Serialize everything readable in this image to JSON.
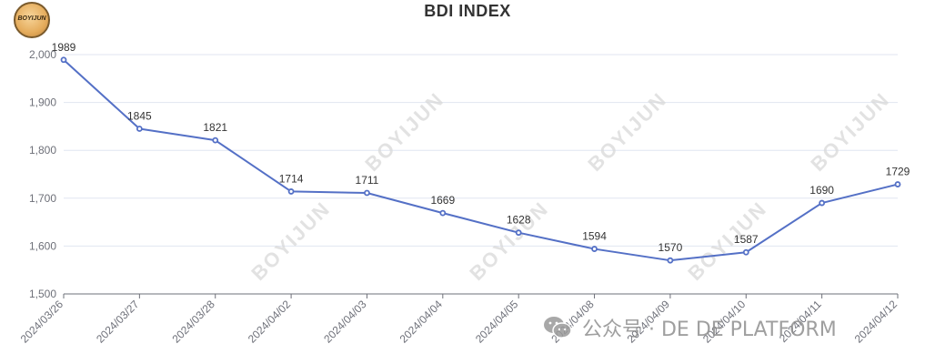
{
  "logo": {
    "text": "BOYIJUN"
  },
  "footer": {
    "text": "公众号 · DE DE PLATFORM",
    "icon": "wechat-icon"
  },
  "watermark_text": "BOYIJUN",
  "chart_data": {
    "type": "line",
    "title": "BDI  INDEX",
    "xlabel": "",
    "ylabel": "",
    "x": [
      "2024/03/26",
      "2024/03/27",
      "2024/03/28",
      "2024/04/02",
      "2024/04/03",
      "2024/04/04",
      "2024/04/05",
      "2024/04/08",
      "2024/04/09",
      "2024/04/10",
      "2024/04/11",
      "2024/04/12"
    ],
    "series": [
      {
        "values": [
          1989,
          1845,
          1821,
          1714,
          1711,
          1669,
          1628,
          1594,
          1570,
          1587,
          1690,
          1729
        ]
      }
    ],
    "ylim": [
      1500,
      2000
    ],
    "yticks": [
      1500,
      1600,
      1700,
      1800,
      1900,
      2000
    ],
    "ytick_labels": [
      "1,500",
      "1,600",
      "1,700",
      "1,800",
      "1,900",
      "2,000"
    ],
    "grid": true,
    "data_labels": true,
    "colors": {
      "line": "#5470c6",
      "grid": "#e0e6f1",
      "axis": "#6e7079",
      "label": "#333333"
    }
  }
}
